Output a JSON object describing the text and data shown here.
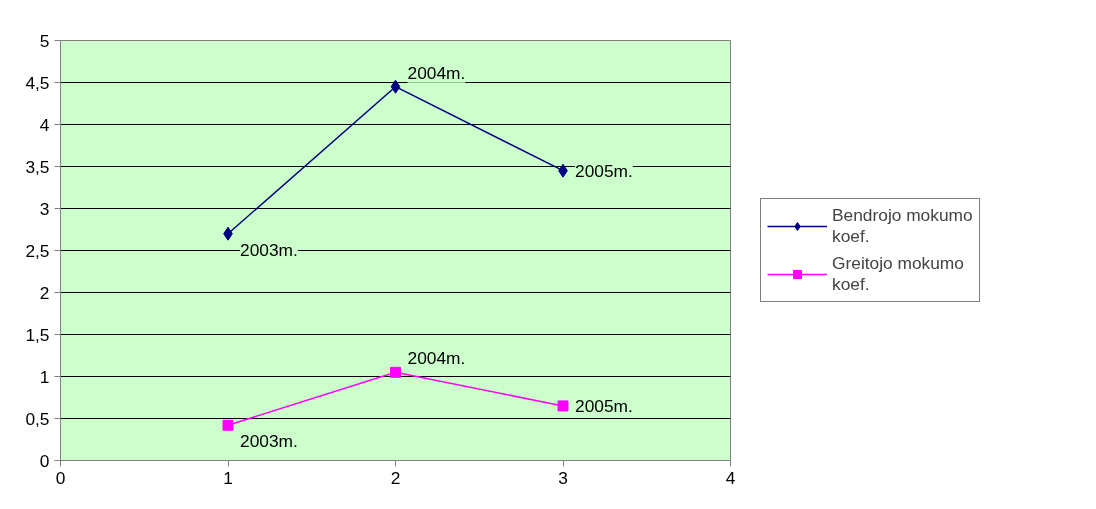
{
  "chart_data": {
    "type": "line",
    "x": [
      1,
      2,
      3
    ],
    "series": [
      {
        "name": "Bendrojo mokumo koef.",
        "color": "#000080",
        "marker": "diamond",
        "values": [
          2.7,
          4.45,
          3.45
        ]
      },
      {
        "name": "Greitojo mokumo koef.",
        "color": "#ff00ff",
        "marker": "square",
        "values": [
          0.42,
          1.05,
          0.65
        ]
      }
    ],
    "annotations": [
      {
        "text": "2003m.",
        "x": 1,
        "y": 2.7
      },
      {
        "text": "2004m.",
        "x": 2,
        "y": 4.45
      },
      {
        "text": "2005m.",
        "x": 3,
        "y": 3.45
      },
      {
        "text": "2003m.",
        "x": 1,
        "y": 0.42
      },
      {
        "text": "2004m.",
        "x": 2,
        "y": 1.05
      },
      {
        "text": "2005m.",
        "x": 3,
        "y": 0.65
      }
    ],
    "xlim": [
      0,
      4
    ],
    "xticks": [
      0,
      1,
      2,
      3,
      4
    ],
    "ylim": [
      0,
      5
    ],
    "yticks": [
      0,
      {
        "value": 0.5,
        "label": "0,5"
      },
      1,
      {
        "value": 1.5,
        "label": "1,5"
      },
      2,
      {
        "value": 2.5,
        "label": "2,5"
      },
      3,
      {
        "value": 3.5,
        "label": "3,5"
      },
      4,
      {
        "value": 4.5,
        "label": "4,5"
      },
      5
    ],
    "grid": "y",
    "legend": "right",
    "line_style": "solid"
  }
}
